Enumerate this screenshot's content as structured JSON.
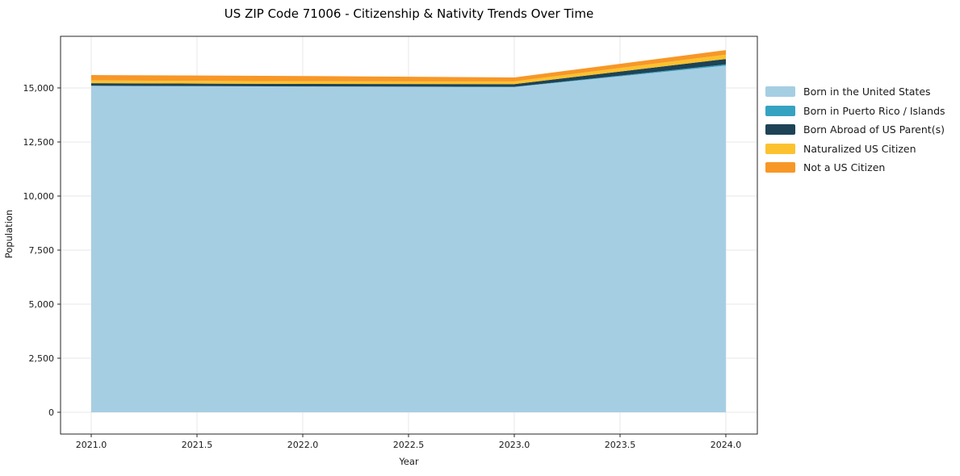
{
  "page": {
    "background_color": "#ffffff"
  },
  "chart_data": {
    "type": "area",
    "stacked": true,
    "title": "US ZIP Code 71006 - Citizenship & Nativity Trends Over Time",
    "xlabel": "Year",
    "ylabel": "Population",
    "x": [
      2021,
      2022,
      2023,
      2024
    ],
    "series": [
      {
        "name": "Born in the United States",
        "color": "#a6cee3",
        "values": [
          15100,
          15070,
          15040,
          16030
        ]
      },
      {
        "name": "Born in Puerto Rico / Islands",
        "color": "#35a2c2",
        "values": [
          0,
          0,
          10,
          60
        ]
      },
      {
        "name": "Born Abroad of US Parent(s)",
        "color": "#1e4356",
        "values": [
          120,
          115,
          130,
          250
        ]
      },
      {
        "name": "Naturalized US Citizen",
        "color": "#fcc22e",
        "values": [
          125,
          120,
          120,
          200
        ]
      },
      {
        "name": "Not a US Citizen",
        "color": "#f79727",
        "values": [
          250,
          245,
          185,
          210
        ]
      }
    ],
    "totals_by_year": [
      15595,
      15550,
      15485,
      16750
    ],
    "x_ticks": [
      {
        "value": 2021.0,
        "label": "2021.0"
      },
      {
        "value": 2021.5,
        "label": "2021.5"
      },
      {
        "value": 2022.0,
        "label": "2022.0"
      },
      {
        "value": 2022.5,
        "label": "2022.5"
      },
      {
        "value": 2023.0,
        "label": "2023.0"
      },
      {
        "value": 2023.5,
        "label": "2023.5"
      },
      {
        "value": 2024.0,
        "label": "2024.0"
      }
    ],
    "y_ticks": [
      {
        "value": 0,
        "label": "0"
      },
      {
        "value": 2500,
        "label": "2,500"
      },
      {
        "value": 5000,
        "label": "5,000"
      },
      {
        "value": 7500,
        "label": "7,500"
      },
      {
        "value": 10000,
        "label": "10,000"
      },
      {
        "value": 12500,
        "label": "12,500"
      },
      {
        "value": 15000,
        "label": "15,000"
      }
    ],
    "xlim": [
      2020.855,
      2024.149
    ],
    "ylim": [
      -1007,
      17387
    ],
    "grid": true,
    "grid_color": "#e7e7e7",
    "spine_color": "#262626",
    "tick_label_color": "#1a1a1a",
    "legend_position": "right"
  }
}
